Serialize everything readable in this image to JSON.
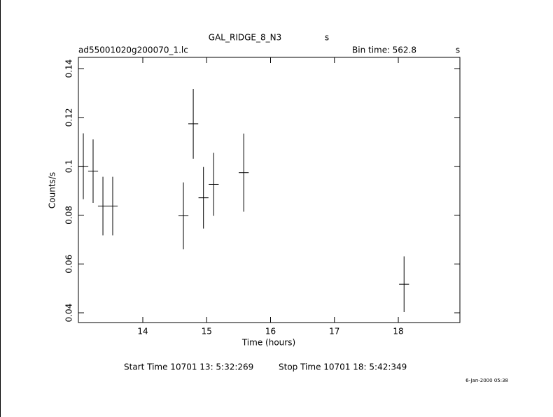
{
  "chart_data": {
    "type": "errorbar",
    "title": "GAL_RIDGE_8_N3",
    "title_unit": "s",
    "file_name": "ad55001020g200070_1.lc",
    "bin_time_label": "Bin time:",
    "bin_time": "562.8",
    "bin_time_unit": "s",
    "x_label": "Time (hours)",
    "y_label": "Counts/s",
    "start_time": "Start Time 10701 13: 5:32:269",
    "stop_time": "Stop Time 10701 18: 5:42:349",
    "timestamp": "6-Jan-2000 05:38",
    "x": [
      13.069,
      13.222,
      13.376,
      13.529,
      14.636,
      14.79,
      14.95,
      15.11,
      15.58,
      18.09
    ],
    "xerr": 0.078,
    "series": [
      {
        "color": "#000000",
        "values": [
          0.1,
          0.098,
          0.0837,
          0.0837,
          0.0797,
          0.1174,
          0.0871,
          0.0926,
          0.0974,
          0.0517
        ],
        "errors": [
          0.0135,
          0.013,
          0.012,
          0.012,
          0.0137,
          0.0143,
          0.0126,
          0.0129,
          0.016,
          0.0114
        ]
      }
    ],
    "xlim": [
      12.992,
      18.964
    ],
    "ylim": [
      0.036,
      0.1446
    ],
    "xticks": [
      14,
      15,
      16,
      17,
      18
    ],
    "yticks": [
      0.04,
      0.06,
      0.08,
      0.1,
      0.12,
      0.14
    ]
  }
}
